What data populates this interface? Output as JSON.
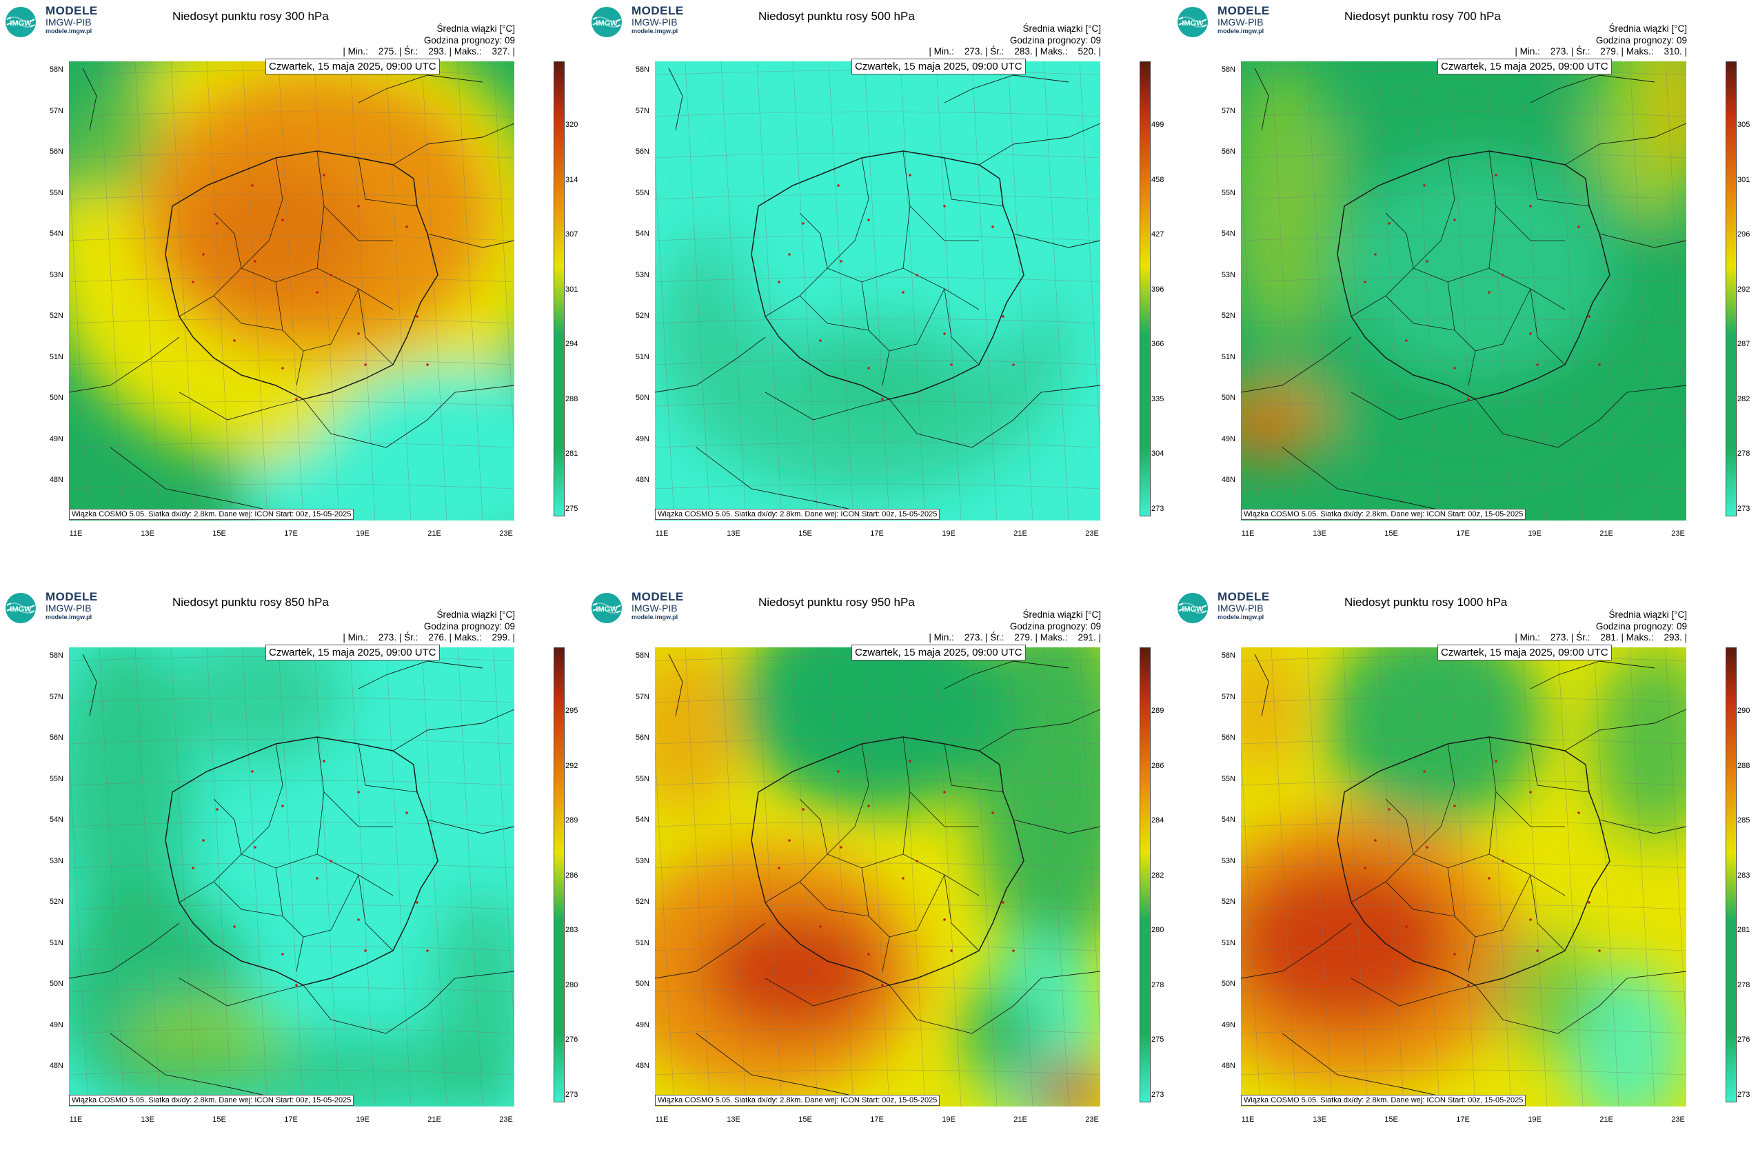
{
  "brand": {
    "name": "MODELE",
    "org": "IMGW-PIB",
    "url": "modele.imgw.pl"
  },
  "common": {
    "field_label": "Średnia wiązki [°C]",
    "forecast_hour": "Godzina prognozy: 09",
    "valid_time": "Czwartek, 15 maja 2025, 09:00 UTC",
    "credit": "Wiązka COSMO 5.05. Siatka dx/dy: 2.8km. Dane wej: ICON Start: 00z, 15-05-2025",
    "lat_labels": [
      "58N",
      "57N",
      "56N",
      "55N",
      "54N",
      "53N",
      "52N",
      "51N",
      "50N",
      "49N",
      "48N"
    ],
    "lon_labels": [
      "11E",
      "13E",
      "15E",
      "17E",
      "19E",
      "21E",
      "23E"
    ],
    "colors": {
      "low": "#3ef0cf",
      "green": "#1fae5e",
      "yellow": "#e8e400",
      "orange": "#e88c0c",
      "red": "#c8320e",
      "darkred": "#5c1a0f"
    }
  },
  "panels": [
    {
      "title": "Niedosyt punktu rosy 300 hPa",
      "stats": "| Min.:    275. | Śr.:    293. | Maks.:    327. |",
      "ticks": [
        "320",
        "314",
        "307",
        "301",
        "294",
        "288",
        "281",
        "275"
      ]
    },
    {
      "title": "Niedosyt punktu rosy 500 hPa",
      "stats": "| Min.:    273. | Śr.:    283. | Maks.:    520. |",
      "ticks": [
        "499",
        "458",
        "427",
        "396",
        "366",
        "335",
        "304",
        "273"
      ]
    },
    {
      "title": "Niedosyt punktu rosy 700 hPa",
      "stats": "| Min.:    273. | Śr.:    279. | Maks.:    310. |",
      "ticks": [
        "305",
        "301",
        "296",
        "292",
        "287",
        "282",
        "278",
        "273"
      ]
    },
    {
      "title": "Niedosyt punktu rosy 850 hPa",
      "stats": "| Min.:    273. | Śr.:    276. | Maks.:    299. |",
      "ticks": [
        "295",
        "292",
        "289",
        "286",
        "283",
        "280",
        "276",
        "273"
      ]
    },
    {
      "title": "Niedosyt punktu rosy 950 hPa",
      "stats": "| Min.:    273. | Śr.:    279. | Maks.:    291. |",
      "ticks": [
        "289",
        "286",
        "284",
        "282",
        "280",
        "278",
        "275",
        "273"
      ]
    },
    {
      "title": "Niedosyt punktu rosy 1000 hPa",
      "stats": "| Min.:    273. | Śr.:    281. | Maks.:    293. |",
      "ticks": [
        "290",
        "288",
        "285",
        "283",
        "281",
        "278",
        "276",
        "273"
      ]
    }
  ]
}
